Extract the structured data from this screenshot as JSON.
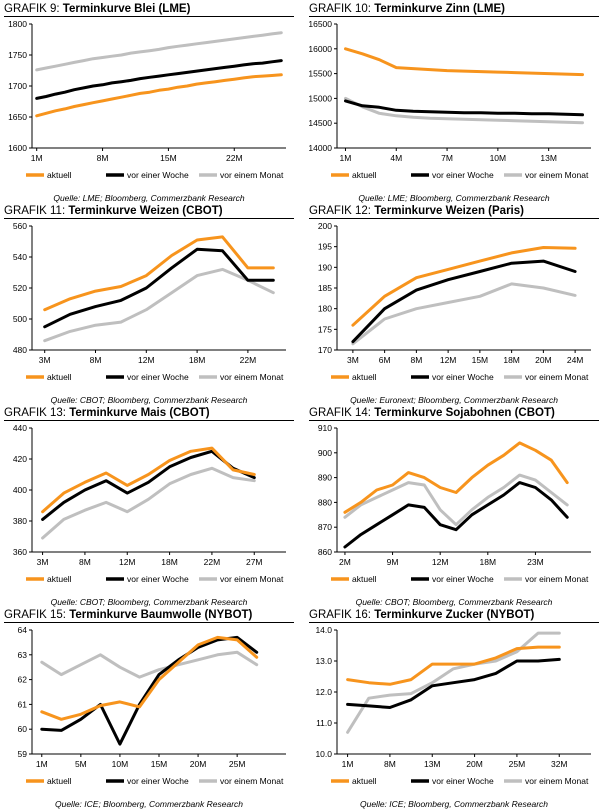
{
  "colors": {
    "aktuell": "#f7941d",
    "woche": "#000000",
    "monat": "#bfbfbf"
  },
  "legend_labels": [
    "aktuell",
    "vor einer Woche",
    "vor einem Monat"
  ],
  "chart_data": [
    {
      "type": "line",
      "prefix": "GRAFIK 9:",
      "title": "Terminkurve Blei (LME)",
      "source": "Quelle: LME; Bloomberg, Commerzbank Research",
      "n": 27,
      "xticks": [
        "1M",
        "8M",
        "15M",
        "22M"
      ],
      "xtick_idx": [
        0,
        7,
        14,
        21
      ],
      "ylim": [
        1600,
        1800
      ],
      "yticks": [
        1600,
        1650,
        1700,
        1750,
        1800
      ],
      "series": [
        {
          "name": "aktuell",
          "values": [
            1652,
            1656,
            1660,
            1663,
            1667,
            1670,
            1673,
            1676,
            1679,
            1682,
            1685,
            1688,
            1690,
            1693,
            1695,
            1698,
            1700,
            1703,
            1705,
            1707,
            1709,
            1711,
            1713,
            1715,
            1716,
            1717,
            1718
          ]
        },
        {
          "name": "vor einer Woche",
          "values": [
            1680,
            1683,
            1687,
            1690,
            1694,
            1697,
            1700,
            1702,
            1705,
            1707,
            1709,
            1712,
            1714,
            1716,
            1718,
            1720,
            1722,
            1724,
            1726,
            1728,
            1730,
            1732,
            1734,
            1736,
            1737,
            1739,
            1741
          ]
        },
        {
          "name": "vor einem Monat",
          "values": [
            1726,
            1729,
            1732,
            1735,
            1738,
            1741,
            1744,
            1746,
            1748,
            1750,
            1753,
            1755,
            1757,
            1759,
            1762,
            1764,
            1766,
            1768,
            1770,
            1772,
            1774,
            1776,
            1778,
            1780,
            1782,
            1784,
            1786
          ]
        }
      ]
    },
    {
      "type": "line",
      "prefix": "GRAFIK 10:",
      "title": "Terminkurve Zinn (LME)",
      "source": "Quelle: LME; Bloomberg, Commerzbank Research",
      "n": 15,
      "xticks": [
        "1M",
        "4M",
        "7M",
        "10M",
        "13M"
      ],
      "xtick_idx": [
        0,
        3,
        6,
        9,
        12
      ],
      "ylim": [
        14000,
        16500
      ],
      "yticks": [
        14000,
        14500,
        15000,
        15500,
        16000,
        16500
      ],
      "series": [
        {
          "name": "aktuell",
          "values": [
            16000,
            15900,
            15780,
            15620,
            15600,
            15580,
            15560,
            15550,
            15540,
            15530,
            15520,
            15510,
            15500,
            15490,
            15480
          ]
        },
        {
          "name": "vor einer Woche",
          "values": [
            14950,
            14850,
            14820,
            14760,
            14740,
            14730,
            14720,
            14710,
            14710,
            14700,
            14700,
            14690,
            14690,
            14680,
            14670
          ]
        },
        {
          "name": "vor einem Monat",
          "values": [
            15000,
            14830,
            14700,
            14650,
            14620,
            14600,
            14590,
            14580,
            14570,
            14560,
            14550,
            14540,
            14530,
            14520,
            14510
          ]
        }
      ]
    },
    {
      "type": "line",
      "prefix": "GRAFIK 11:",
      "title": "Terminkurve Weizen (CBOT)",
      "source": "Quelle: CBOT; Bloomberg, Commerzbank Research",
      "n": 10,
      "xticks": [
        "3M",
        "8M",
        "12M",
        "18M",
        "22M"
      ],
      "xtick_idx": [
        0,
        2,
        4,
        6,
        8
      ],
      "ylim": [
        480,
        560
      ],
      "yticks": [
        480,
        500,
        520,
        540,
        560
      ],
      "series": [
        {
          "name": "aktuell",
          "values": [
            506,
            513,
            518,
            521,
            528,
            541,
            551,
            553,
            533,
            533
          ]
        },
        {
          "name": "vor einer Woche",
          "values": [
            495,
            503,
            508,
            512,
            520,
            533,
            545,
            544,
            525,
            525
          ]
        },
        {
          "name": "vor einem Monat",
          "values": [
            486,
            492,
            496,
            498,
            506,
            517,
            528,
            532,
            525,
            517
          ]
        }
      ]
    },
    {
      "type": "line",
      "prefix": "GRAFIK 12:",
      "title": "Terminkurve Weizen (Paris)",
      "source": "Quelle: Euronext; Bloomberg, Commerzbank Research",
      "n": 8,
      "xticks": [
        "3M",
        "6M",
        "8M",
        "12M",
        "15M",
        "18M",
        "20M",
        "24M"
      ],
      "xtick_idx": [
        0,
        1,
        2,
        3,
        4,
        5,
        6,
        7
      ],
      "ylim": [
        170,
        200
      ],
      "yticks": [
        170,
        175,
        180,
        185,
        190,
        195,
        200
      ],
      "series": [
        {
          "name": "aktuell",
          "values": [
            176,
            183,
            187.5,
            189.5,
            191.5,
            193.5,
            194.8,
            194.6
          ]
        },
        {
          "name": "vor einer Woche",
          "values": [
            172,
            180,
            184.5,
            187,
            189,
            191,
            191.5,
            189
          ]
        },
        {
          "name": "vor einem Monat",
          "values": [
            171.5,
            177.5,
            180,
            181.5,
            183,
            186,
            185,
            183.2
          ]
        }
      ]
    },
    {
      "type": "line",
      "prefix": "GRAFIK 13:",
      "title": "Terminkurve Mais (CBOT)",
      "source": "Quelle: CBOT; Bloomberg, Commerzbank Research",
      "n": 12,
      "xticks": [
        "3M",
        "8M",
        "12M",
        "18M",
        "22M",
        "27M"
      ],
      "xtick_idx": [
        0,
        2,
        4,
        6,
        8,
        10
      ],
      "ylim": [
        360,
        440
      ],
      "yticks": [
        360,
        380,
        400,
        420,
        440
      ],
      "series": [
        {
          "name": "aktuell",
          "values": [
            386,
            398,
            405,
            411,
            403,
            410,
            419,
            425,
            427,
            413,
            410
          ]
        },
        {
          "name": "vor einer Woche",
          "values": [
            381,
            392,
            400,
            406,
            398,
            405,
            415,
            421,
            425,
            414,
            408
          ]
        },
        {
          "name": "vor einem Monat",
          "values": [
            369,
            381,
            387,
            392,
            386,
            394,
            404,
            410,
            414,
            408,
            406
          ]
        }
      ]
    },
    {
      "type": "line",
      "prefix": "GRAFIK 14:",
      "title": "Terminkurve Sojabohnen (CBOT)",
      "source": "Quelle: CBOT; Bloomberg, Commerzbank Research",
      "n": 16,
      "xticks": [
        "2M",
        "9M",
        "12M",
        "18M",
        "23M"
      ],
      "xtick_idx": [
        0,
        3,
        6,
        9,
        12
      ],
      "ylim": [
        860,
        910
      ],
      "yticks": [
        860,
        870,
        880,
        890,
        900,
        910
      ],
      "series": [
        {
          "name": "aktuell",
          "values": [
            876,
            880,
            885,
            887,
            892,
            890,
            886,
            884,
            890,
            895,
            899,
            904,
            901,
            897,
            888
          ]
        },
        {
          "name": "vor einer Woche",
          "values": [
            862,
            867,
            871,
            875,
            879,
            878,
            871,
            869,
            875,
            879,
            883,
            888,
            886,
            881,
            874
          ]
        },
        {
          "name": "vor einem Monat",
          "values": [
            874,
            879,
            882,
            885,
            888,
            887,
            877,
            871,
            877,
            882,
            886,
            891,
            889,
            884,
            879
          ]
        }
      ]
    },
    {
      "type": "line",
      "prefix": "GRAFIK 15:",
      "title": "Terminkurve Baumwolle (NYBOT)",
      "source": "Quelle: ICE; Bloomberg, Commerzbank Research",
      "n": 13,
      "xticks": [
        "1M",
        "5M",
        "10M",
        "15M",
        "20M",
        "25M"
      ],
      "xtick_idx": [
        0,
        2,
        4,
        6,
        8,
        10
      ],
      "ylim": [
        59,
        64
      ],
      "yticks": [
        59,
        60,
        61,
        62,
        63,
        64
      ],
      "series": [
        {
          "name": "aktuell",
          "values": [
            60.7,
            60.4,
            60.6,
            60.95,
            61.1,
            60.9,
            62.0,
            62.7,
            63.4,
            63.7,
            63.6,
            62.9
          ]
        },
        {
          "name": "vor einer Woche",
          "values": [
            60.0,
            59.95,
            60.4,
            61.0,
            59.4,
            61.0,
            62.2,
            62.8,
            63.3,
            63.6,
            63.7,
            63.1
          ]
        },
        {
          "name": "vor einem Monat",
          "values": [
            62.7,
            62.2,
            62.6,
            63.0,
            62.5,
            62.1,
            62.4,
            62.6,
            62.8,
            63.0,
            63.1,
            62.6
          ]
        }
      ]
    },
    {
      "type": "line",
      "prefix": "GRAFIK 16:",
      "title": "Terminkurve Zucker (NYBOT)",
      "source": "Quelle: ICE; Bloomberg, Commerzbank Research",
      "n": 12,
      "xticks": [
        "1M",
        "8M",
        "13M",
        "20M",
        "25M",
        "32M"
      ],
      "xtick_idx": [
        0,
        2,
        4,
        6,
        8,
        10
      ],
      "ylim": [
        10,
        14
      ],
      "yticks": [
        10.0,
        11.0,
        12.0,
        13.0,
        14.0
      ],
      "series": [
        {
          "name": "aktuell",
          "values": [
            12.4,
            12.3,
            12.25,
            12.4,
            12.9,
            12.9,
            12.9,
            13.1,
            13.4,
            13.45,
            13.45
          ]
        },
        {
          "name": "vor einer Woche",
          "values": [
            11.6,
            11.55,
            11.5,
            11.75,
            12.2,
            12.3,
            12.4,
            12.6,
            13.0,
            13.0,
            13.05
          ]
        },
        {
          "name": "vor einem Monat",
          "values": [
            10.7,
            11.8,
            11.9,
            11.95,
            12.3,
            12.75,
            12.9,
            13.0,
            13.3,
            13.9,
            13.9
          ]
        }
      ]
    }
  ]
}
